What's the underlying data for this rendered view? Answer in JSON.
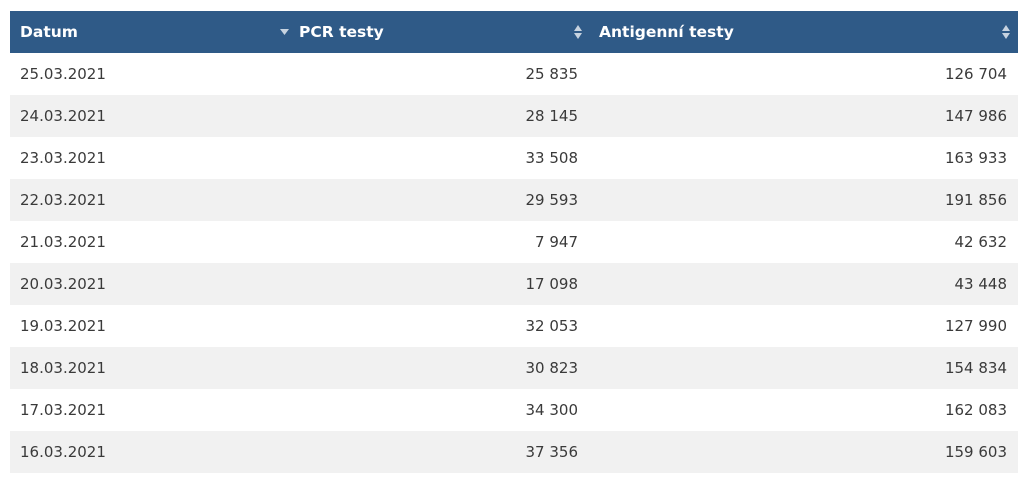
{
  "table": {
    "columns": [
      {
        "label": "Datum",
        "sort": "sorted-desc"
      },
      {
        "label": "PCR testy",
        "sort": "unsorted"
      },
      {
        "label": "Antigenní testy",
        "sort": "unsorted"
      }
    ],
    "rows": [
      {
        "datum": "25.03.2021",
        "pcr": "25 835",
        "ag": "126 704"
      },
      {
        "datum": "24.03.2021",
        "pcr": "28 145",
        "ag": "147 986"
      },
      {
        "datum": "23.03.2021",
        "pcr": "33 508",
        "ag": "163 933"
      },
      {
        "datum": "22.03.2021",
        "pcr": "29 593",
        "ag": "191 856"
      },
      {
        "datum": "21.03.2021",
        "pcr": "7 947",
        "ag": "42 632"
      },
      {
        "datum": "20.03.2021",
        "pcr": "17 098",
        "ag": "43 448"
      },
      {
        "datum": "19.03.2021",
        "pcr": "32 053",
        "ag": "127 990"
      },
      {
        "datum": "18.03.2021",
        "pcr": "30 823",
        "ag": "154 834"
      },
      {
        "datum": "17.03.2021",
        "pcr": "34 300",
        "ag": "162 083"
      },
      {
        "datum": "16.03.2021",
        "pcr": "37 356",
        "ag": "159 603"
      }
    ]
  },
  "colors": {
    "header_bg": "#2f5a87",
    "header_text": "#ffffff",
    "row_alt_bg": "#f1f1f1",
    "icon": "#c7d3e0"
  }
}
